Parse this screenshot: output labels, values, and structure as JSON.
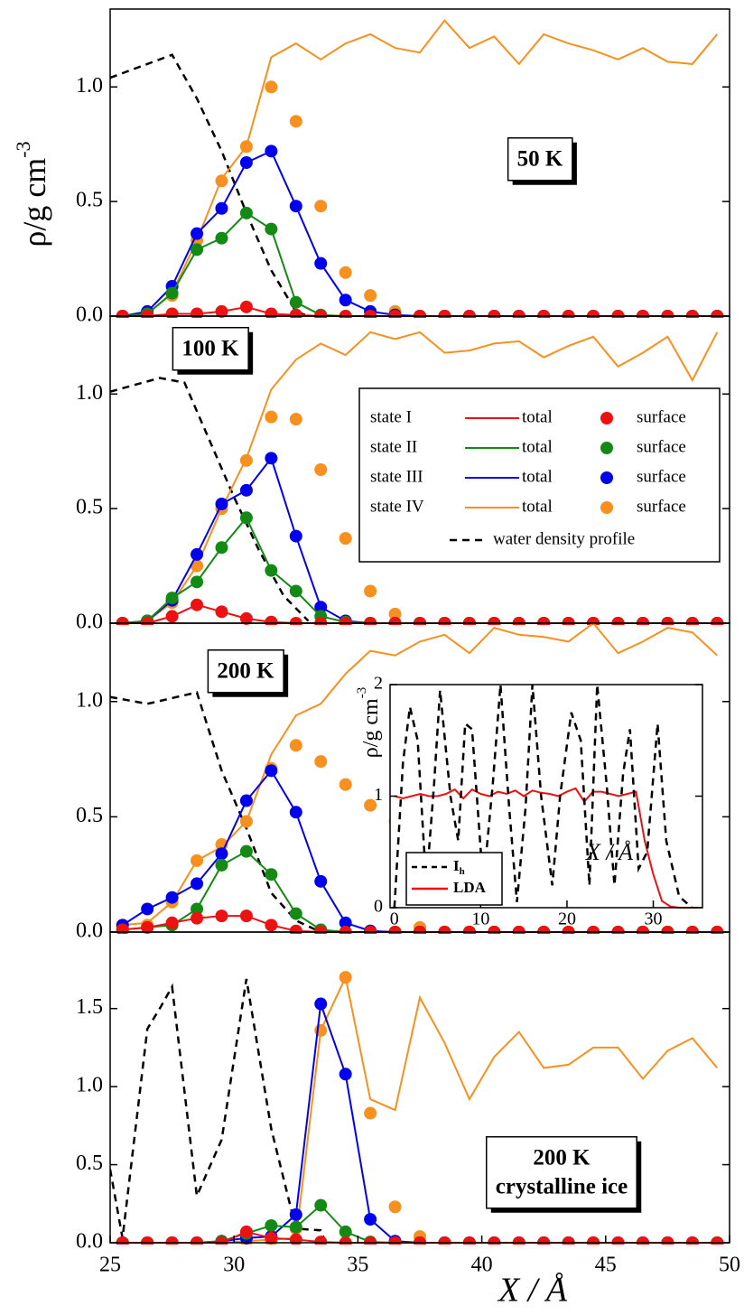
{
  "chart_data": [
    {
      "type": "line",
      "ylabel": "ρ/g cm",
      "ylabel_sup": "-3",
      "annotation": [
        "50 K"
      ],
      "xlim": [
        25,
        50
      ],
      "ylim": [
        0,
        1.34
      ],
      "yticks": [
        {
          "value": 0,
          "label": "0.0"
        },
        0.5,
        {
          "value": 1,
          "label": "1.0"
        }
      ],
      "x": [
        25.5,
        26.5,
        27.5,
        28.5,
        29.5,
        30.5,
        31.5,
        32.5,
        33.5,
        34.5,
        35.5,
        36.5,
        37.5,
        38.5,
        39.5,
        40.5,
        41.5,
        42.5,
        43.5,
        44.5,
        45.5,
        46.5,
        47.5,
        48.5,
        49.5
      ],
      "series": [
        {
          "color": "#ee1111",
          "values": [
            0,
            0,
            0.01,
            0.01,
            0.02,
            0.04,
            0.01,
            0.005,
            0,
            0,
            0,
            0,
            0,
            0,
            0,
            0,
            0,
            0,
            0,
            0,
            0,
            0,
            0,
            0,
            0
          ]
        },
        {
          "color": "#138a13",
          "values": [
            0,
            0.01,
            0.1,
            0.29,
            0.34,
            0.45,
            0.38,
            0.06,
            0.005,
            0,
            0,
            0,
            0,
            0,
            0,
            0,
            0,
            0,
            0,
            0,
            0,
            0,
            0,
            0,
            0
          ]
        },
        {
          "color": "#0000ee",
          "values": [
            0,
            0.02,
            0.13,
            0.36,
            0.47,
            0.67,
            0.72,
            0.48,
            0.23,
            0.07,
            0.02,
            0.005,
            0,
            0,
            0,
            0,
            0,
            0,
            0,
            0,
            0,
            0,
            0,
            0,
            0
          ]
        },
        {
          "color": "#f7901e",
          "values": [
            0,
            0.01,
            0.1,
            0.33,
            0.6,
            0.74,
            1.13,
            1.19,
            1.12,
            1.19,
            1.23,
            1.17,
            1.15,
            1.29,
            1.17,
            1.22,
            1.1,
            1.23,
            1.19,
            1.16,
            1.12,
            1.17,
            1.11,
            1.1,
            1.23
          ],
          "marker_values": [
            0,
            0.01,
            0.09,
            0.33,
            0.59,
            0.74,
            1.0,
            0.85,
            0.48,
            0.19,
            0.09,
            0.02,
            0,
            0,
            0,
            0,
            0,
            0,
            0,
            0,
            0,
            0,
            0,
            0,
            0
          ]
        },
        {
          "color": "#000000",
          "dash": true,
          "x": [
            25,
            27.5,
            28.5,
            29.5,
            30.5,
            31.5,
            32.5,
            33
          ],
          "values": [
            1.04,
            1.14,
            0.95,
            0.72,
            0.45,
            0.2,
            0.02,
            0
          ]
        }
      ]
    },
    {
      "type": "line",
      "annotation": [
        "100 K"
      ],
      "legend": true,
      "xlim": [
        25,
        50
      ],
      "ylim": [
        0,
        1.34
      ],
      "yticks": [
        {
          "value": 0,
          "label": "0.0"
        },
        0.5,
        {
          "value": 1,
          "label": "1.0"
        }
      ],
      "x": [
        25.5,
        26.5,
        27.5,
        28.5,
        29.5,
        30.5,
        31.5,
        32.5,
        33.5,
        34.5,
        35.5,
        36.5,
        37.5,
        38.5,
        39.5,
        40.5,
        41.5,
        42.5,
        43.5,
        44.5,
        45.5,
        46.5,
        47.5,
        48.5,
        49.5
      ],
      "series": [
        {
          "name": "state I",
          "line_label": "total",
          "marker_label": "surface",
          "color": "#ee1111",
          "values": [
            0,
            0,
            0.03,
            0.08,
            0.05,
            0.02,
            0.005,
            0,
            0,
            0,
            0,
            0,
            0,
            0,
            0,
            0,
            0,
            0,
            0,
            0,
            0,
            0,
            0,
            0,
            0
          ]
        },
        {
          "name": "state II",
          "line_label": "total",
          "marker_label": "surface",
          "color": "#138a13",
          "values": [
            0,
            0.01,
            0.11,
            0.18,
            0.33,
            0.46,
            0.23,
            0.14,
            0.03,
            0.005,
            0,
            0,
            0,
            0,
            0,
            0,
            0,
            0,
            0,
            0,
            0,
            0,
            0,
            0,
            0
          ]
        },
        {
          "name": "state III",
          "line_label": "total",
          "marker_label": "surface",
          "color": "#0000ee",
          "values": [
            0,
            0.01,
            0.1,
            0.3,
            0.52,
            0.58,
            0.72,
            0.38,
            0.07,
            0.01,
            0,
            0,
            0,
            0,
            0,
            0,
            0,
            0,
            0,
            0,
            0,
            0,
            0,
            0,
            0
          ]
        },
        {
          "name": "state IV",
          "line_label": "total",
          "marker_label": "surface",
          "color": "#f7901e",
          "values": [
            0,
            0.01,
            0.09,
            0.25,
            0.5,
            0.72,
            1.02,
            1.15,
            1.22,
            1.17,
            1.27,
            1.24,
            1.27,
            1.18,
            1.19,
            1.22,
            1.23,
            1.16,
            1.21,
            1.25,
            1.12,
            1.18,
            1.25,
            1.06,
            1.27
          ],
          "marker_values": [
            0,
            0.01,
            0.09,
            0.25,
            0.5,
            0.71,
            0.9,
            0.89,
            0.67,
            0.37,
            0.14,
            0.04,
            0,
            0,
            0,
            0,
            0,
            0,
            0,
            0,
            0,
            0,
            0,
            0,
            0
          ]
        },
        {
          "name": "water density profile",
          "color": "#000000",
          "dash": true,
          "x": [
            25,
            27,
            28,
            29,
            30,
            31,
            32,
            33
          ],
          "values": [
            1.01,
            1.07,
            1.05,
            0.8,
            0.55,
            0.32,
            0.12,
            0.01
          ]
        }
      ]
    },
    {
      "type": "line",
      "annotation": [
        "200 K"
      ],
      "xlim": [
        25,
        50
      ],
      "ylim": [
        0,
        1.34
      ],
      "yticks": [
        {
          "value": 0,
          "label": "0.0"
        },
        0.5,
        {
          "value": 1,
          "label": "1.0"
        }
      ],
      "x": [
        25.5,
        26.5,
        27.5,
        28.5,
        29.5,
        30.5,
        31.5,
        32.5,
        33.5,
        34.5,
        35.5,
        36.5,
        37.5,
        38.5,
        39.5,
        40.5,
        41.5,
        42.5,
        43.5,
        44.5,
        45.5,
        46.5,
        47.5,
        48.5,
        49.5
      ],
      "series": [
        {
          "color": "#ee1111",
          "values": [
            0.01,
            0.02,
            0.04,
            0.06,
            0.07,
            0.07,
            0.03,
            0.005,
            0,
            0,
            0,
            0,
            0,
            0,
            0,
            0,
            0,
            0,
            0,
            0,
            0,
            0,
            0,
            0,
            0
          ]
        },
        {
          "color": "#138a13",
          "values": [
            0.01,
            0.02,
            0.03,
            0.1,
            0.29,
            0.35,
            0.25,
            0.08,
            0.01,
            0,
            0,
            0,
            0,
            0,
            0,
            0,
            0,
            0,
            0,
            0,
            0,
            0,
            0,
            0,
            0
          ]
        },
        {
          "color": "#0000ee",
          "values": [
            0.03,
            0.1,
            0.15,
            0.21,
            0.34,
            0.57,
            0.7,
            0.52,
            0.22,
            0.04,
            0.005,
            0,
            0,
            0,
            0,
            0,
            0,
            0,
            0,
            0,
            0,
            0,
            0,
            0,
            0
          ]
        },
        {
          "color": "#f7901e",
          "values": [
            0.03,
            0.04,
            0.13,
            0.31,
            0.37,
            0.48,
            0.77,
            0.94,
            0.99,
            1.12,
            1.22,
            1.2,
            1.26,
            1.29,
            1.21,
            1.32,
            1.29,
            1.28,
            1.26,
            1.34,
            1.21,
            1.26,
            1.32,
            1.3,
            1.2
          ],
          "marker_values": [
            0.03,
            0.03,
            0.13,
            0.31,
            0.38,
            0.48,
            0.71,
            0.81,
            0.74,
            0.64,
            0.55,
            0.48,
            0.02,
            0,
            0,
            0,
            0,
            0,
            0,
            0,
            0,
            0,
            0,
            0,
            0
          ]
        },
        {
          "color": "#000000",
          "dash": true,
          "x": [
            25,
            26.5,
            28.5,
            29.5,
            30.5,
            31.5,
            32.5,
            33.5
          ],
          "values": [
            1.02,
            0.99,
            1.04,
            0.7,
            0.45,
            0.17,
            0.05,
            0
          ]
        }
      ]
    },
    {
      "type": "line",
      "annotation": [
        "200 K",
        "crystalline ice"
      ],
      "xlabel": "X / Å",
      "xlim": [
        25,
        50
      ],
      "ylim": [
        0,
        1.99
      ],
      "xticks": [
        25,
        30,
        35,
        40,
        45,
        50
      ],
      "yticks": [
        {
          "value": 0,
          "label": "0.0"
        },
        0.5,
        {
          "value": 1,
          "label": "1.0"
        },
        1.5
      ],
      "x": [
        25.5,
        26.5,
        27.5,
        28.5,
        29.5,
        30.5,
        31.5,
        32.5,
        33.5,
        34.5,
        35.5,
        36.5,
        37.5,
        38.5,
        39.5,
        40.5,
        41.5,
        42.5,
        43.5,
        44.5,
        45.5,
        46.5,
        47.5,
        48.5,
        49.5
      ],
      "series": [
        {
          "color": "#ee1111",
          "values": [
            0,
            0,
            0,
            0,
            0,
            0.07,
            0.03,
            0.02,
            0.005,
            0,
            0,
            0,
            0,
            0,
            0,
            0,
            0,
            0,
            0,
            0,
            0,
            0,
            0,
            0,
            0
          ]
        },
        {
          "color": "#138a13",
          "values": [
            0,
            0,
            0,
            0,
            0.01,
            0.06,
            0.11,
            0.1,
            0.24,
            0.07,
            0.005,
            0,
            0,
            0,
            0,
            0,
            0,
            0,
            0,
            0,
            0,
            0,
            0,
            0,
            0
          ]
        },
        {
          "color": "#0000ee",
          "values": [
            0,
            0,
            0,
            0,
            0.01,
            0.03,
            0.04,
            0.18,
            1.53,
            1.08,
            0.15,
            0.01,
            0,
            0,
            0,
            0,
            0,
            0,
            0,
            0,
            0,
            0,
            0,
            0,
            0
          ]
        },
        {
          "color": "#f7901e",
          "values": [
            0,
            0,
            0,
            0,
            0,
            0.01,
            0.02,
            0.03,
            1.36,
            1.7,
            0.92,
            0.85,
            1.57,
            1.28,
            0.92,
            1.19,
            1.35,
            1.12,
            1.14,
            1.25,
            1.25,
            1.05,
            1.23,
            1.31,
            1.12
          ],
          "marker_values": [
            0,
            0,
            0,
            0,
            0,
            0.01,
            0.01,
            0.09,
            1.36,
            1.7,
            0.83,
            0.23,
            0.04,
            0,
            0,
            0,
            0,
            0,
            0,
            0,
            0,
            0,
            0,
            0,
            0
          ]
        },
        {
          "color": "#000000",
          "dash": true,
          "x": [
            25,
            25.5,
            26.5,
            27,
            27.5,
            28.5,
            29.5,
            30.5,
            31.5,
            32.5,
            33.5,
            33.7
          ],
          "values": [
            0.47,
            0.03,
            1.37,
            1.5,
            1.64,
            0.3,
            0.66,
            1.69,
            0.73,
            0.09,
            0.08,
            0
          ]
        }
      ]
    },
    {
      "type": "line",
      "inset": true,
      "ylabel": "ρ/g cm",
      "ylabel_sup": "-3",
      "xlabel": "X / Å",
      "xlim": [
        -0.5,
        35.7
      ],
      "ylim": [
        0,
        2
      ],
      "xticks": [
        0,
        10,
        20,
        30
      ],
      "yticks": [
        0,
        1,
        2
      ],
      "series": [
        {
          "name": "I",
          "name_sub": "h",
          "color": "#000000",
          "dash": true,
          "x": [
            0,
            1,
            1.8,
            2.7,
            3.7,
            4.6,
            5.3,
            6.5,
            7.4,
            8.2,
            9,
            10.3,
            11.4,
            12.3,
            13.3,
            14.2,
            15.2,
            16,
            17,
            18.3,
            19.2,
            20.5,
            21.6,
            22.6,
            23.5,
            24.6,
            25.5,
            26.5,
            27.3,
            28.3,
            29.3,
            30.5,
            31.5,
            33,
            34.5
          ],
          "values": [
            0,
            1.3,
            1.8,
            1.5,
            0.2,
            1.1,
            1.95,
            1.0,
            0.6,
            1.65,
            1.6,
            0.2,
            1.1,
            2.0,
            0.9,
            0.05,
            0.9,
            2.0,
            1.0,
            0.2,
            1.0,
            1.75,
            1.5,
            0.2,
            2.0,
            1.1,
            0.2,
            1.2,
            1.6,
            0.35,
            0.5,
            1.65,
            0.6,
            0.1,
            0
          ]
        },
        {
          "name": "LDA",
          "color": "#ee1111",
          "x": [
            0,
            1,
            2,
            3,
            4,
            5,
            6,
            7,
            8,
            9,
            10,
            11,
            12,
            13,
            14,
            15,
            16,
            17,
            18,
            19,
            20,
            21,
            22,
            23,
            24,
            25,
            26,
            27,
            28,
            29,
            30,
            31,
            32,
            33,
            34,
            35
          ],
          "values": [
            1.0,
            0.98,
            1.0,
            1.02,
            1.0,
            1.0,
            1.02,
            1.06,
            0.98,
            1.06,
            1.02,
            1.0,
            1.04,
            1.02,
            1.05,
            1.0,
            1.05,
            1.03,
            1.02,
            1.0,
            1.04,
            1.07,
            0.95,
            1.04,
            1.04,
            1.02,
            1.0,
            1.02,
            1.04,
            0.6,
            0.3,
            0.06,
            0.01,
            0,
            0,
            0
          ]
        }
      ]
    }
  ]
}
